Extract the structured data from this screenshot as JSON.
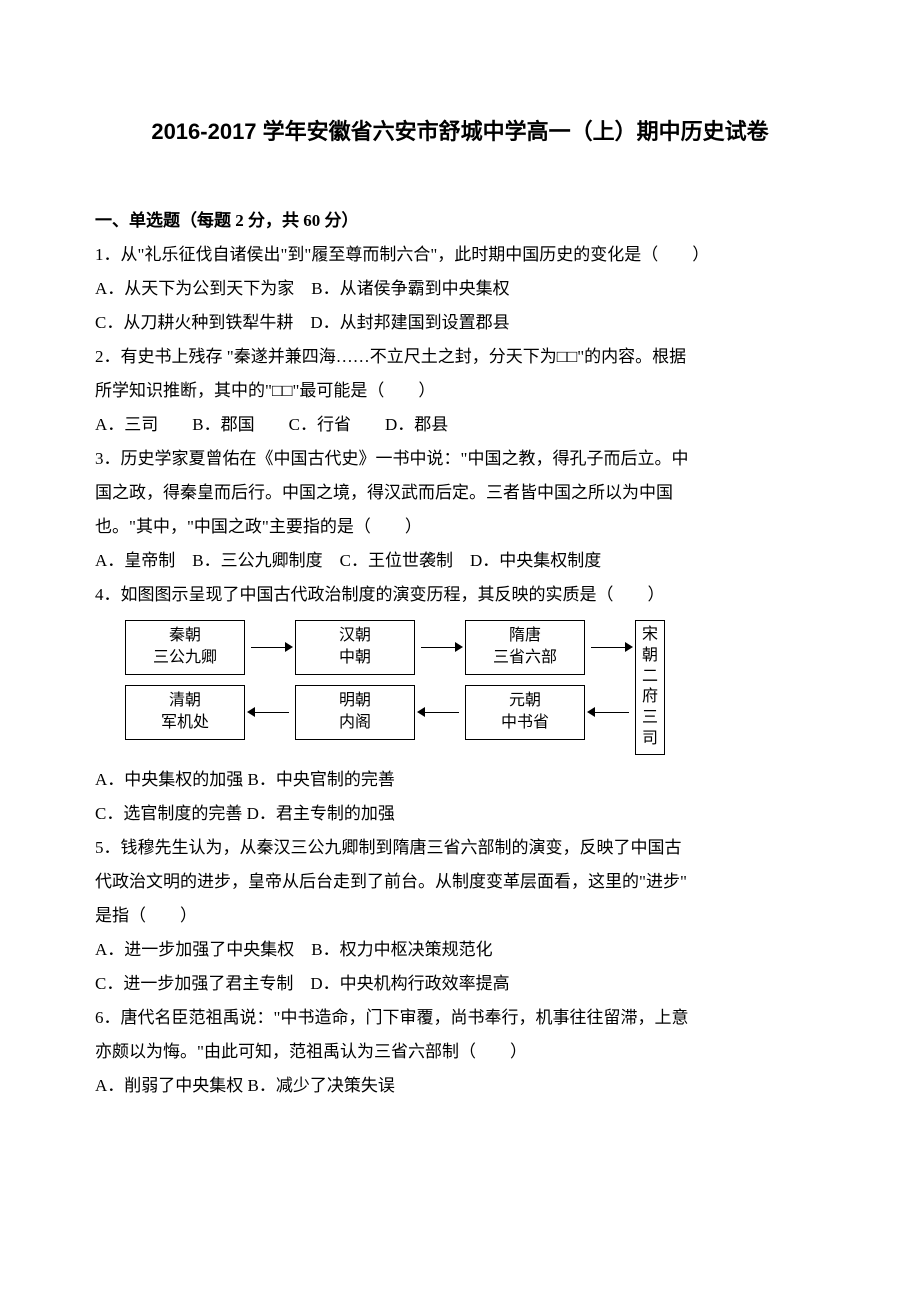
{
  "title": "2016-2017 学年安徽省六安市舒城中学高一（上）期中历史试卷",
  "section1": "一、单选题（每题 2 分，共 60 分）",
  "q1": {
    "stem": "1．从\"礼乐征伐自诸侯出\"到\"履至尊而制六合\"，此时期中国历史的变化是（　　）",
    "optAB": "A．从天下为公到天下为家　B．从诸侯争霸到中央集权",
    "optCD": "C．从刀耕火种到铁犁牛耕　D．从封邦建国到设置郡县"
  },
  "q2": {
    "stem1": "2．有史书上残存 \"秦遂并兼四海……不立尺土之封，分天下为□□\"的内容。根据",
    "stem2": "所学知识推断，其中的\"□□\"最可能是（　　）",
    "opts": "A．三司　　B．郡国　　C．行省　　D．郡县"
  },
  "q3": {
    "stem1": "3．历史学家夏曾佑在《中国古代史》一书中说：\"中国之教，得孔子而后立。中",
    "stem2": "国之政，得秦皇而后行。中国之境，得汉武而后定。三者皆中国之所以为中国",
    "stem3": "也。\"其中，\"中国之政\"主要指的是（　　）",
    "opts": "A．皇帝制　B．三公九卿制度　C．王位世袭制　D．中央集权制度"
  },
  "q4": {
    "stem": "4．如图图示呈现了中国古代政治制度的演变历程，其反映的实质是（　　）",
    "optAB": "A．中央集权的加强 B．中央官制的完善",
    "optCD": "C．选官制度的完善 D．君主专制的加强"
  },
  "diagram": {
    "boxes_top": [
      "秦朝\n三公九卿",
      "汉朝\n中朝",
      "隋唐\n三省六部"
    ],
    "box_side": "宋朝\n二府\n三司",
    "boxes_bottom": [
      "清朝\n军机处",
      "明朝\n内阁",
      "元朝\n中书省"
    ]
  },
  "q5": {
    "stem1": "5．钱穆先生认为，从秦汉三公九卿制到隋唐三省六部制的演变，反映了中国古",
    "stem2": "代政治文明的进步，皇帝从后台走到了前台。从制度变革层面看，这里的\"进步\"",
    "stem3": "是指（　　）",
    "optAB": "A．进一步加强了中央集权　B．权力中枢决策规范化",
    "optCD": "C．进一步加强了君主专制　D．中央机构行政效率提高"
  },
  "q6": {
    "stem1": "6．唐代名臣范祖禹说：\"中书造命，门下审覆，尚书奉行，机事往往留滞，上意",
    "stem2": "亦颇以为悔。\"由此可知，范祖禹认为三省六部制（　　）",
    "optAB": "A．削弱了中央集权 B．减少了决策失误"
  }
}
